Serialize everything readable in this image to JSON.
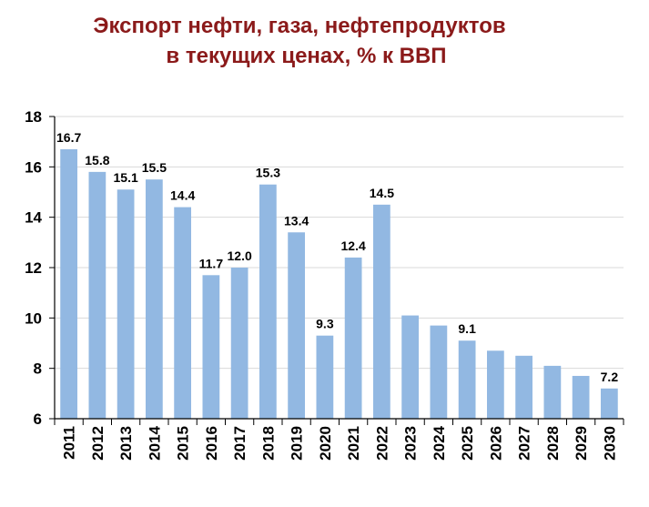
{
  "chart_data": {
    "type": "bar",
    "title_line1": "Экспорт нефти, газа, нефтепродуктов",
    "title_line2": "в текущих ценах, % к ВВП",
    "xlabel": "",
    "ylabel": "",
    "categories": [
      "2011",
      "2012",
      "2013",
      "2014",
      "2015",
      "2016",
      "2017",
      "2018",
      "2019",
      "2020",
      "2021",
      "2022",
      "2023",
      "2024",
      "2025",
      "2026",
      "2027",
      "2028",
      "2029",
      "2030"
    ],
    "values": [
      16.7,
      15.8,
      15.1,
      15.5,
      14.4,
      11.7,
      12.0,
      15.3,
      13.4,
      9.3,
      12.4,
      14.5,
      10.1,
      9.7,
      9.1,
      8.7,
      8.5,
      8.1,
      7.7,
      7.2
    ],
    "data_labels": [
      "16.7",
      "15.8",
      "15.1",
      "15.5",
      "14.4",
      "11.7",
      "12.0",
      "15.3",
      "13.4",
      "9.3",
      "12.4",
      "14.5",
      "",
      "",
      "9.1",
      "",
      "",
      "",
      "",
      "7.2"
    ],
    "ylim": [
      6,
      18
    ],
    "yticks": [
      6,
      8,
      10,
      12,
      14,
      16,
      18
    ],
    "grid": true,
    "legend": "none",
    "bar_color": "#92b8e2",
    "grid_color": "#d9d9d9",
    "axis_color": "#000000",
    "title_color": "#8b1a1a"
  }
}
